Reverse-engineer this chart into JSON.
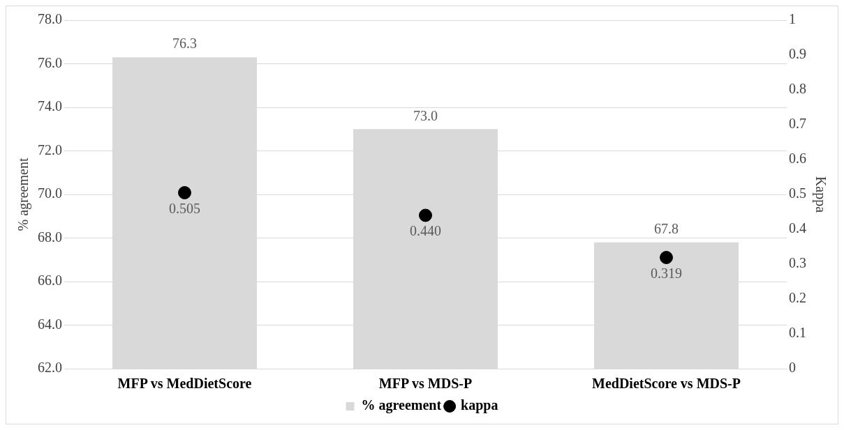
{
  "chart_data": {
    "type": "bar",
    "categories": [
      "MFP vs MedDietScore",
      "MFP vs MDS-P",
      "MedDietScore vs MDS-P"
    ],
    "ylabel": "% agreement",
    "y2label": "Kappa",
    "ylim": [
      62,
      78
    ],
    "yticks": [
      {
        "value": 62,
        "label": "62.0"
      },
      {
        "value": 64,
        "label": "64.0"
      },
      {
        "value": 66,
        "label": "66.0"
      },
      {
        "value": 68,
        "label": "68.0"
      },
      {
        "value": 70,
        "label": "70.0"
      },
      {
        "value": 72,
        "label": "72.0"
      },
      {
        "value": 74,
        "label": "74.0"
      },
      {
        "value": 76,
        "label": "76.0"
      },
      {
        "value": 78,
        "label": "78.0"
      }
    ],
    "y2lim": [
      0,
      1
    ],
    "y2ticks": [
      0,
      0.1,
      0.2,
      0.3,
      0.4,
      0.5,
      0.6,
      0.7,
      0.8,
      0.9,
      1
    ],
    "grid": "y",
    "legend": "bottom",
    "series": [
      {
        "name": "% agreement",
        "color": "#d9d9d9",
        "values": [
          76.3,
          73.0,
          67.8
        ],
        "value_labels": [
          "76.3",
          "73.0",
          "67.8"
        ]
      },
      {
        "name": "kappa",
        "type": "scatter",
        "axis": "y2",
        "color": "#000000",
        "marker": "circle",
        "values": [
          0.505,
          0.44,
          0.319
        ],
        "value_labels": [
          "0.505",
          "0.440",
          "0.319"
        ]
      }
    ]
  }
}
